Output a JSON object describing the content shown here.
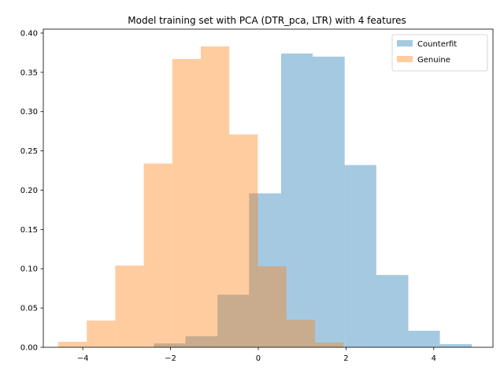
{
  "chart_data": {
    "type": "bar",
    "title": "Model training set with PCA (DTR_pca, LTR) with 4 features",
    "xlabel": "",
    "ylabel": "",
    "xlim": [
      -4.9,
      5.35
    ],
    "ylim": [
      0,
      0.405
    ],
    "x_ticks": [
      -4,
      -2,
      0,
      2,
      4
    ],
    "x_tick_labels": [
      "−4",
      "−2",
      "0",
      "2",
      "4"
    ],
    "y_ticks": [
      0.0,
      0.05,
      0.1,
      0.15,
      0.2,
      0.25,
      0.3,
      0.35,
      0.4
    ],
    "y_tick_labels": [
      "0.00",
      "0.05",
      "0.10",
      "0.15",
      "0.20",
      "0.25",
      "0.30",
      "0.35",
      "0.40"
    ],
    "grid": false,
    "legend_position": "top-right",
    "series": [
      {
        "name": "Counterfit",
        "color": "#1f77b4",
        "alpha": 0.4,
        "bins": [
          {
            "x0": -2.38,
            "x1": -1.66,
            "value": 0.005
          },
          {
            "x0": -1.66,
            "x1": -0.93,
            "value": 0.014
          },
          {
            "x0": -0.93,
            "x1": -0.21,
            "value": 0.067
          },
          {
            "x0": -0.21,
            "x1": 0.52,
            "value": 0.196
          },
          {
            "x0": 0.52,
            "x1": 1.24,
            "value": 0.374
          },
          {
            "x0": 1.24,
            "x1": 1.97,
            "value": 0.37
          },
          {
            "x0": 1.97,
            "x1": 2.69,
            "value": 0.232
          },
          {
            "x0": 2.69,
            "x1": 3.42,
            "value": 0.092
          },
          {
            "x0": 3.42,
            "x1": 4.14,
            "value": 0.021
          },
          {
            "x0": 4.14,
            "x1": 4.87,
            "value": 0.004
          }
        ]
      },
      {
        "name": "Genuine",
        "color": "#ff7f0e",
        "alpha": 0.4,
        "bins": [
          {
            "x0": -4.56,
            "x1": -3.91,
            "value": 0.007
          },
          {
            "x0": -3.91,
            "x1": -3.26,
            "value": 0.034
          },
          {
            "x0": -3.26,
            "x1": -2.61,
            "value": 0.104
          },
          {
            "x0": -2.61,
            "x1": -1.96,
            "value": 0.234
          },
          {
            "x0": -1.96,
            "x1": -1.31,
            "value": 0.367
          },
          {
            "x0": -1.31,
            "x1": -0.66,
            "value": 0.383
          },
          {
            "x0": -0.66,
            "x1": -0.01,
            "value": 0.271
          },
          {
            "x0": -0.01,
            "x1": 0.64,
            "value": 0.103
          },
          {
            "x0": 0.64,
            "x1": 1.29,
            "value": 0.035
          },
          {
            "x0": 1.29,
            "x1": 1.94,
            "value": 0.006
          }
        ]
      }
    ]
  }
}
